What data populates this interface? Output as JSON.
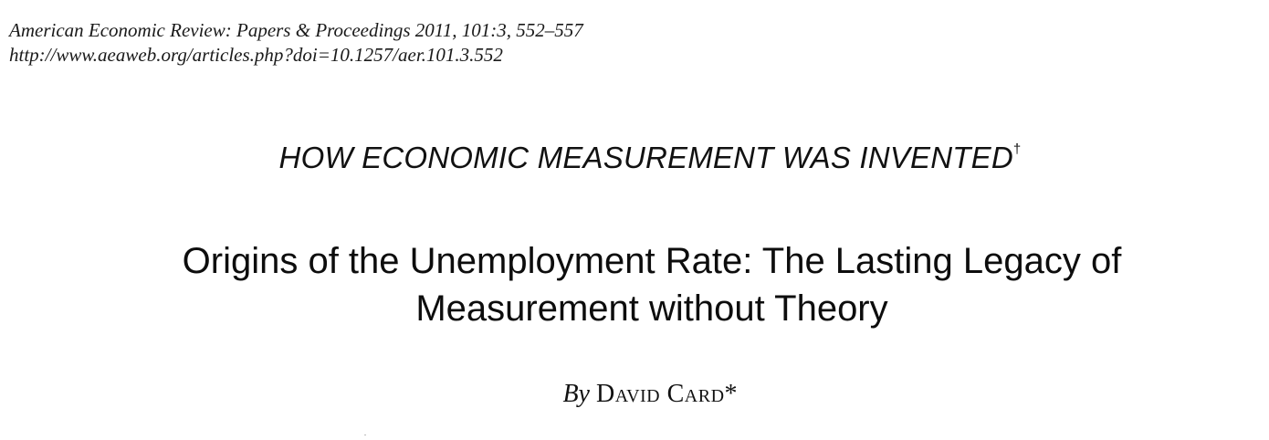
{
  "journal": {
    "citation": "American Economic Review: Papers & Proceedings 2011, 101:3, 552–557",
    "url": "http://www.aeaweb.org/articles.php?doi=10.1257/aer.101.3.552"
  },
  "section": {
    "heading": "HOW ECONOMIC MEASUREMENT WAS INVENTED",
    "mark": "†"
  },
  "paper": {
    "title_line1": "Origins of the Unemployment Rate: The Lasting Legacy of",
    "title_line2": "Measurement without Theory"
  },
  "byline": {
    "by": "By",
    "author": "David Card",
    "mark": "*"
  }
}
